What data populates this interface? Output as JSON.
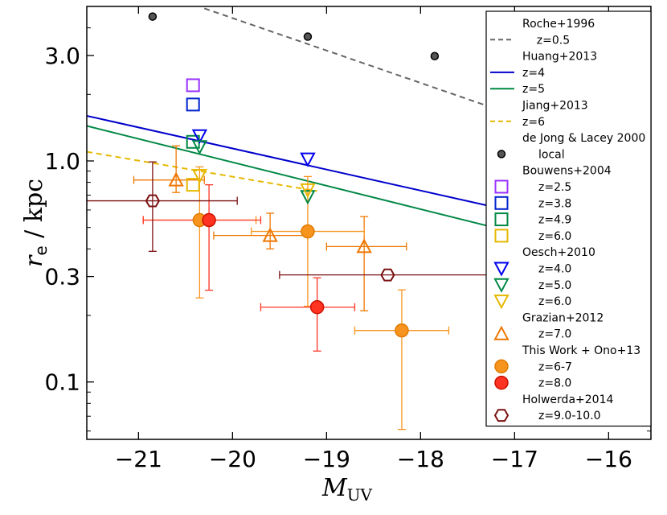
{
  "chart_data": {
    "type": "scatter",
    "xlabel": "M_UV",
    "xlabel_main": "M",
    "xlabel_sub": "UV",
    "ylabel": "r_e / kpc",
    "ylabel_main": "r",
    "ylabel_sub": "e",
    "ylabel_rest": " / kpc",
    "xlim": [
      -21.55,
      -15.55
    ],
    "ylim": [
      0.055,
      5.0
    ],
    "yscale": "log",
    "xticks": [
      -21,
      -20,
      -19,
      -18,
      -17,
      -16
    ],
    "xtick_labels": [
      "−21",
      "−20",
      "−19",
      "−18",
      "−17",
      "−16"
    ],
    "yticks": [
      0.1,
      0.3,
      1.0,
      3.0
    ],
    "ytick_labels": [
      "0.1",
      "0.3",
      "1.0",
      "3.0"
    ],
    "lines": [
      {
        "name": "Roche+1996 z=0.5",
        "color": "#666666",
        "dash": "dashed",
        "x": [
          -20.3,
          -17.3
        ],
        "y": [
          4.9,
          1.78
        ]
      },
      {
        "name": "Huang+2013 z=4",
        "color": "#0000cc",
        "dash": "solid",
        "x": [
          -21.55,
          -17.3
        ],
        "y": [
          1.6,
          0.63
        ]
      },
      {
        "name": "Huang+2013 z=5",
        "color": "#008844",
        "dash": "solid",
        "x": [
          -21.55,
          -17.3
        ],
        "y": [
          1.44,
          0.51
        ]
      },
      {
        "name": "Jiang+2013 z=6",
        "color": "#e6b800",
        "dash": "dashed",
        "x": [
          -21.55,
          -19.1
        ],
        "y": [
          1.1,
          0.73
        ]
      }
    ],
    "series": [
      {
        "name": "local",
        "group": "de Jong & Lacey 2000",
        "marker": "dot",
        "color": "#555555",
        "points": [
          {
            "x": -20.85,
            "y": 4.5
          },
          {
            "x": -19.2,
            "y": 3.65
          },
          {
            "x": -17.85,
            "y": 2.98
          }
        ]
      },
      {
        "name": "z=2.5",
        "group": "Bouwens+2004",
        "marker": "square",
        "color": "#9933ff",
        "points": [
          {
            "x": -20.42,
            "y": 2.2
          }
        ]
      },
      {
        "name": "z=3.8",
        "group": "Bouwens+2004",
        "marker": "square",
        "color": "#0022cc",
        "points": [
          {
            "x": -20.42,
            "y": 1.8
          }
        ]
      },
      {
        "name": "z=4.9",
        "group": "Bouwens+2004",
        "marker": "square",
        "color": "#008844",
        "points": [
          {
            "x": -20.42,
            "y": 1.22
          }
        ]
      },
      {
        "name": "z=6.0",
        "group": "Bouwens+2004",
        "marker": "square",
        "color": "#e6b800",
        "points": [
          {
            "x": -20.42,
            "y": 0.78
          }
        ]
      },
      {
        "name": "z=4.0",
        "group": "Oesch+2010",
        "marker": "tri-down",
        "color": "#0000ee",
        "points": [
          {
            "x": -20.35,
            "y": 1.3
          },
          {
            "x": -19.2,
            "y": 1.02
          }
        ]
      },
      {
        "name": "z=5.0",
        "group": "Oesch+2010",
        "marker": "tri-down",
        "color": "#008844",
        "points": [
          {
            "x": -20.35,
            "y": 1.16
          },
          {
            "x": -19.2,
            "y": 0.69
          }
        ]
      },
      {
        "name": "z=6.0",
        "group": "Oesch+2010",
        "marker": "tri-down",
        "color": "#e6b800",
        "points": [
          {
            "x": -20.35,
            "y": 0.86
          },
          {
            "x": -19.2,
            "y": 0.74
          }
        ]
      },
      {
        "name": "z=7.0",
        "group": "Grazian+2012",
        "marker": "tri-up",
        "color": "#ee7700",
        "points": [
          {
            "x": -20.6,
            "y": 0.82,
            "xerr": [
              0.45,
              0.3
            ],
            "yerr": [
              0.1,
              0.35
            ]
          },
          {
            "x": -19.6,
            "y": 0.46,
            "xerr": [
              0.6,
              0.4
            ],
            "yerr": [
              0.06,
              0.12
            ]
          },
          {
            "x": -18.6,
            "y": 0.41,
            "xerr": [
              0.4,
              0.45
            ],
            "yerr": [
              0.2,
              0.15
            ]
          }
        ]
      },
      {
        "name": "z=6-7",
        "group": "This Work + Ono+13",
        "marker": "circle",
        "color": "#f7941d",
        "points": [
          {
            "x": -20.35,
            "y": 0.54,
            "xerr": [
              0.6,
              0.6
            ],
            "yerr": [
              0.3,
              0.4
            ]
          },
          {
            "x": -19.2,
            "y": 0.48,
            "xerr": [
              0.6,
              0.6
            ],
            "yerr": [
              0.26,
              0.37
            ]
          },
          {
            "x": -18.2,
            "y": 0.171,
            "xerr": [
              0.5,
              0.5
            ],
            "yerr": [
              0.11,
              0.09
            ]
          }
        ]
      },
      {
        "name": "z=8.0",
        "group": "This Work + Ono+13",
        "marker": "circle",
        "color": "#ff3322",
        "points": [
          {
            "x": -20.25,
            "y": 0.54,
            "xerr": [
              0.7,
              0.55
            ],
            "yerr": [
              0.28,
              0.24
            ]
          },
          {
            "x": -19.1,
            "y": 0.218,
            "xerr": [
              0.6,
              0.4
            ],
            "yerr": [
              0.08,
              0.078
            ]
          }
        ]
      },
      {
        "name": "z=9.0-10.0",
        "group": "Holwerda+2014",
        "marker": "hexagon",
        "color": "#7a1010",
        "points": [
          {
            "x": -20.85,
            "y": 0.66,
            "xerr": [
              0.7,
              0.9
            ],
            "yerr": [
              0.27,
              0.33
            ]
          },
          {
            "x": -18.35,
            "y": 0.305,
            "xerr": [
              1.15,
              1.25
            ],
            "yerr": [
              0,
              0
            ]
          }
        ]
      }
    ],
    "legend": {
      "placement": "right-inside",
      "entries": [
        {
          "kind": "header",
          "text": "Roche+1996"
        },
        {
          "kind": "line",
          "text": "z=0.5",
          "color": "#666666",
          "dash": "dashed"
        },
        {
          "kind": "header",
          "text": "Huang+2013"
        },
        {
          "kind": "line",
          "text": "z=4",
          "color": "#0000cc",
          "dash": "solid"
        },
        {
          "kind": "line",
          "text": "z=5",
          "color": "#008844",
          "dash": "solid"
        },
        {
          "kind": "header",
          "text": "Jiang+2013"
        },
        {
          "kind": "line",
          "text": "z=6",
          "color": "#e6b800",
          "dash": "dashed"
        },
        {
          "kind": "header",
          "text": "de Jong & Lacey 2000"
        },
        {
          "kind": "marker",
          "text": "local",
          "marker": "dot",
          "color": "#555555"
        },
        {
          "kind": "header",
          "text": "Bouwens+2004"
        },
        {
          "kind": "marker",
          "text": "z=2.5",
          "marker": "square",
          "color": "#9933ff"
        },
        {
          "kind": "marker",
          "text": "z=3.8",
          "marker": "square",
          "color": "#0022cc"
        },
        {
          "kind": "marker",
          "text": "z=4.9",
          "marker": "square",
          "color": "#008844"
        },
        {
          "kind": "marker",
          "text": "z=6.0",
          "marker": "square",
          "color": "#e6b800"
        },
        {
          "kind": "header",
          "text": "Oesch+2010"
        },
        {
          "kind": "marker",
          "text": "z=4.0",
          "marker": "tri-down",
          "color": "#0000ee"
        },
        {
          "kind": "marker",
          "text": "z=5.0",
          "marker": "tri-down",
          "color": "#008844"
        },
        {
          "kind": "marker",
          "text": "z=6.0",
          "marker": "tri-down",
          "color": "#e6b800"
        },
        {
          "kind": "header",
          "text": "Grazian+2012"
        },
        {
          "kind": "marker",
          "text": "z=7.0",
          "marker": "tri-up",
          "color": "#ee7700"
        },
        {
          "kind": "header",
          "text": "This Work + Ono+13"
        },
        {
          "kind": "marker",
          "text": "z=6-7",
          "marker": "circle",
          "color": "#f7941d"
        },
        {
          "kind": "marker",
          "text": "z=8.0",
          "marker": "circle",
          "color": "#ff3322"
        },
        {
          "kind": "header",
          "text": "Holwerda+2014"
        },
        {
          "kind": "marker",
          "text": "z=9.0-10.0",
          "marker": "hexagon",
          "color": "#7a1010"
        }
      ]
    }
  }
}
